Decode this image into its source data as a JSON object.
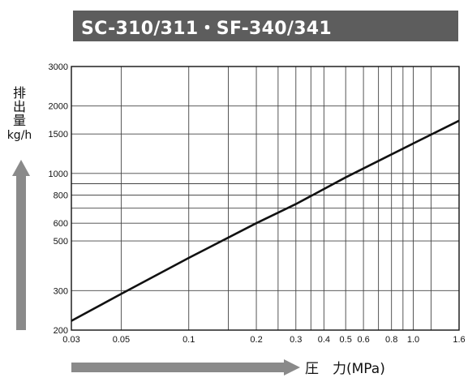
{
  "title": "SC-310/311・SF-340/341",
  "chart_data": {
    "type": "line",
    "xscale": "log",
    "yscale": "log",
    "xlim": [
      0.03,
      1.6
    ],
    "ylim": [
      200,
      3000
    ],
    "xlabel": "圧　力(MPa)",
    "ylabel": [
      "排",
      "出",
      "量"
    ],
    "ylabel_unit": "kg/h",
    "xticks": [
      0.03,
      0.05,
      0.1,
      0.2,
      0.3,
      0.4,
      0.5,
      0.6,
      0.8,
      1.0,
      1.6
    ],
    "xtick_labels": [
      "0.03",
      "0.05",
      "0.1",
      "0.2",
      "0.3",
      "0.4",
      "0.5",
      "0.6",
      "0.8",
      "1.0",
      "1.6"
    ],
    "xgrid": [
      0.03,
      0.05,
      0.1,
      0.15,
      0.2,
      0.25,
      0.3,
      0.35,
      0.4,
      0.5,
      0.6,
      0.7,
      0.8,
      0.9,
      1.0,
      1.2,
      1.6
    ],
    "yticks": [
      200,
      300,
      500,
      600,
      800,
      1000,
      1500,
      2000,
      3000
    ],
    "ytick_labels": [
      "200",
      "300",
      "500",
      "600",
      "800",
      "1000",
      "1500",
      "2000",
      "3000"
    ],
    "ygrid": [
      200,
      300,
      500,
      600,
      700,
      800,
      900,
      1000,
      1500,
      2000,
      3000
    ],
    "grid": true,
    "series": [
      {
        "x": [
          0.03,
          0.05,
          0.1,
          0.2,
          0.3,
          0.5,
          1.0,
          1.6
        ],
        "y": [
          220,
          290,
          420,
          600,
          730,
          960,
          1360,
          1720
        ]
      }
    ]
  }
}
